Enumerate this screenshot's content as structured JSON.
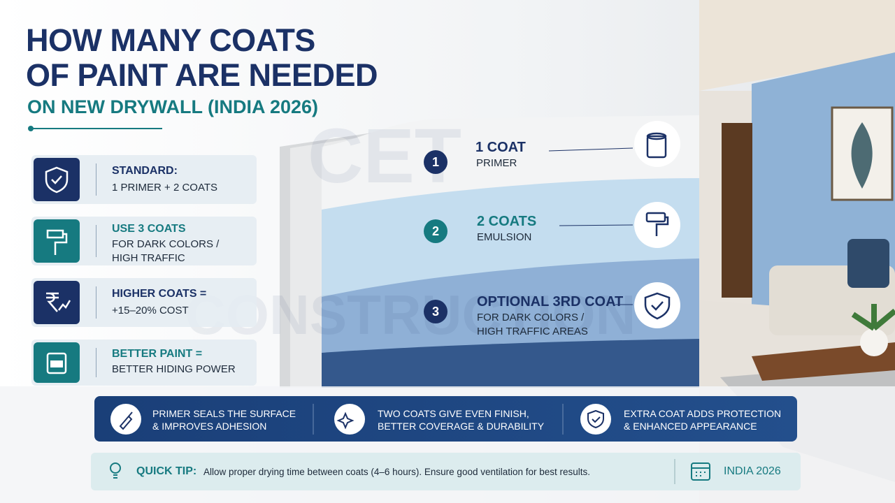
{
  "title": {
    "lines": [
      "HOW MANY COATS",
      "OF PAINT ARE NEEDED"
    ],
    "subtitle": "ON NEW DRYWALL (INDIA 2026)"
  },
  "watermark": [
    "CET",
    "CONSTRUCTION"
  ],
  "cards": [
    {
      "heading": "STANDARD:",
      "text": [
        "1 PRIMER + 2 COATS"
      ]
    },
    {
      "heading": "USE 3 COATS",
      "text": [
        "FOR DARK COLORS /",
        "HIGH TRAFFIC"
      ]
    },
    {
      "heading": "HIGHER COATS =",
      "text": [
        "+15–20% COST"
      ]
    },
    {
      "heading": "BETTER PAINT =",
      "text": [
        "BETTER HIDING POWER"
      ]
    }
  ],
  "layers": [
    {
      "number": "1",
      "title": "1 COAT",
      "sub": [
        "PRIMER"
      ]
    },
    {
      "number": "2",
      "title": "2 COATS",
      "sub": [
        "EMULSION"
      ]
    },
    {
      "number": "3",
      "title": "OPTIONAL 3RD COAT",
      "sub": [
        "FOR DARK COLORS /",
        "HIGH TRAFFIC AREAS"
      ]
    }
  ],
  "banner": [
    [
      "PRIMER SEALS THE SURFACE",
      "& IMPROVES ADHESION"
    ],
    [
      "TWO COATS GIVE EVEN FINISH,",
      "BETTER COVERAGE & DURABILITY"
    ],
    [
      "EXTRA COAT ADDS PROTECTION",
      "& ENHANCED APPEARANCE"
    ]
  ],
  "tip": {
    "label": "QUICK TIP:",
    "text": "Allow proper drying time between coats (4–6 hours). Ensure good ventilation for best results.",
    "badge": "INDIA 2026"
  }
}
